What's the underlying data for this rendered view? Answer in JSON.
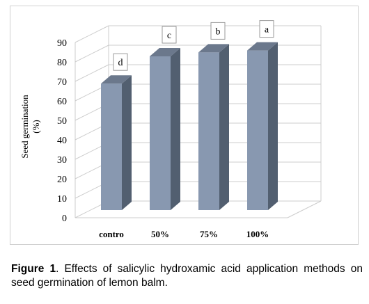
{
  "chart_data": {
    "type": "bar",
    "categories": [
      "contro",
      "50%",
      "75%",
      "100%"
    ],
    "values": [
      71,
      85,
      87,
      88
    ],
    "significance_letters": [
      "d",
      "c",
      "b",
      "a"
    ],
    "ylabel_line1": "Seed germination",
    "ylabel_line2": "(%)",
    "ylim": [
      0,
      90
    ],
    "yticks": [
      "0",
      "10",
      "20",
      "30",
      "40",
      "50",
      "60",
      "70",
      "80",
      "90"
    ],
    "grid": true,
    "style": "3d",
    "colors": {
      "bar_front": "#8898b0",
      "bar_side": "#525f70",
      "bar_top": "#6b788c",
      "grid": "#cccccc"
    }
  },
  "caption": {
    "label": "Figure 1",
    "text": ". Effects of salicylic hydroxamic acid application methods on seed germination of lemon balm."
  }
}
